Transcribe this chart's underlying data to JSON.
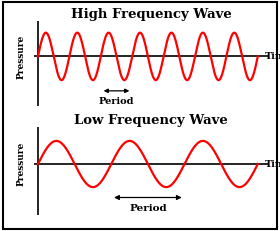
{
  "title_high": "High Frequency Wave",
  "title_low": "Low Frequency Wave",
  "xlabel": "Time",
  "ylabel": "Pressure",
  "wave_color": "#ff0000",
  "axis_color": "#000000",
  "bg_color": "#ffffff",
  "high_freq_cycles": 7,
  "low_freq_cycles": 3,
  "title_fontsize": 9.5,
  "label_fontsize": 7,
  "period_label_fontsize": 7,
  "wave_linewidth": 1.6,
  "axis_linewidth": 1.2,
  "border_linewidth": 1.5
}
